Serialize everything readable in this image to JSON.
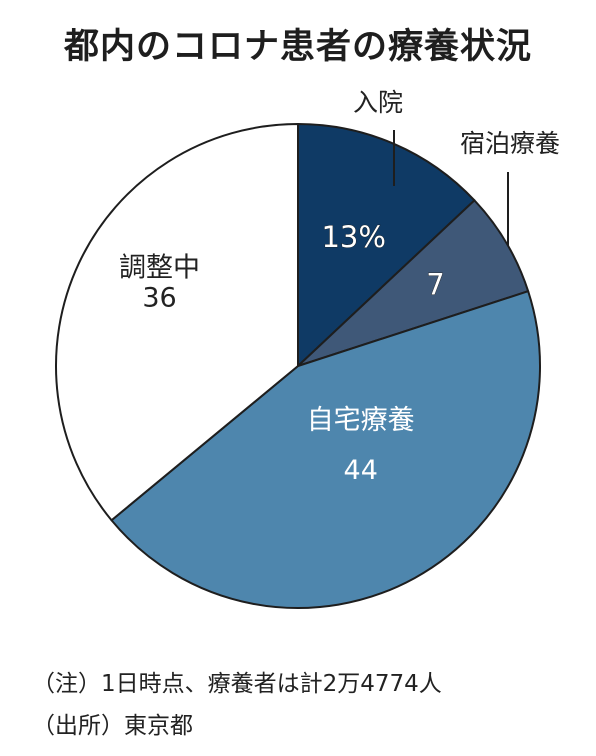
{
  "chart_data": {
    "type": "pie",
    "title": "都内のコロナ患者の療養状況",
    "unit": "%",
    "start_angle_deg": 0,
    "direction": "clockwise",
    "slices": [
      {
        "label": "入院",
        "value": 13,
        "value_text": "13%",
        "color": "#0f3a65",
        "label_color": "#ffffff",
        "label_placement": "outside-leader",
        "value_placement": "inside"
      },
      {
        "label": "宿泊療養",
        "value": 7,
        "value_text": "7",
        "color": "#3f5878",
        "label_color": "#ffffff",
        "label_placement": "outside-leader",
        "value_placement": "inside"
      },
      {
        "label": "自宅療養",
        "value": 44,
        "value_text": "44",
        "color": "#4e86ad",
        "label_color": "#ffffff",
        "label_placement": "inside",
        "value_placement": "inside"
      },
      {
        "label": "調整中",
        "value": 36,
        "value_text": "36",
        "color": "#ffffff",
        "label_color": "#222222",
        "label_placement": "inside",
        "value_placement": "inside"
      }
    ],
    "notes": [
      "（注）1日時点、療養者は計2万4774人",
      "（出所）東京都"
    ]
  }
}
